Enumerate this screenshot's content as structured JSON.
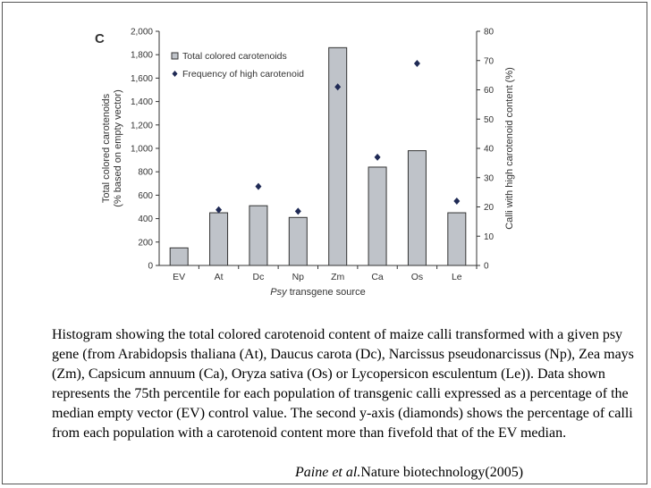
{
  "chart_data": {
    "type": "bar",
    "panel_label": "C",
    "categories": [
      "EV",
      "At",
      "Dc",
      "Np",
      "Zm",
      "Ca",
      "Os",
      "Le"
    ],
    "series": [
      {
        "name": "Total colored carotenoids",
        "kind": "bar",
        "axis": "left",
        "values": [
          150,
          450,
          510,
          410,
          1860,
          840,
          980,
          450
        ]
      },
      {
        "name": "Frequency of high carotenoid",
        "kind": "marker",
        "axis": "right",
        "values": [
          null,
          19,
          27,
          18.5,
          61,
          37,
          69,
          22
        ]
      }
    ],
    "ylabel_left_line1": "Total colored carotenoids",
    "ylabel_left_line2": "(% based on empty vector)",
    "ylabel_right": "Calli with high carotenoid content (%)",
    "xlabel_italic": "Psy",
    "xlabel_rest": " transgene source",
    "ylim_left": [
      0,
      2000
    ],
    "ylim_right": [
      0,
      80
    ],
    "yticks_left": [
      "0",
      "200",
      "400",
      "600",
      "800",
      "1,000",
      "1,200",
      "1,400",
      "1,600",
      "1,800",
      "2,000"
    ],
    "yticks_right": [
      "0",
      "10",
      "20",
      "30",
      "40",
      "50",
      "60",
      "70",
      "80"
    ],
    "legend": [
      "Total colored carotenoids",
      "Frequency of high carotenoid"
    ],
    "colors": {
      "bar_fill": "#bfc3c9",
      "bar_stroke": "#333333",
      "marker": "#1f2a55",
      "axis": "#333333"
    }
  },
  "caption": "Histogram showing the total colored carotenoid content of maize calli transformed with a given psy gene (from Arabidopsis thaliana (At), Daucus carota (Dc), Narcissus pseudonarcissus (Np), Zea mays (Zm), Capsicum annuum (Ca), Oryza sativa (Os) or Lycopersicon esculentum (Le)). Data shown represents the 75th percentile for each population of transgenic calli expressed as a percentage of the median empty vector (EV) control value. The second y-axis (diamonds) shows the percentage of calli from each population with a carotenoid content more than fivefold that of the EV median.",
  "citation": {
    "authors": "Paine et al.",
    "journal": "Nature biotechnology(2005)"
  }
}
